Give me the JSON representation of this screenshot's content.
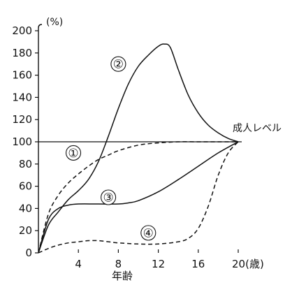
{
  "chart_data": {
    "type": "line",
    "y_unit": "(%)",
    "x_unit": "(歳)",
    "xlabel": "年齢",
    "xlim": [
      0,
      20
    ],
    "ylim": [
      0,
      200
    ],
    "x_ticks": [
      "4",
      "8",
      "12",
      "16",
      "20(歳)"
    ],
    "x_tick_values": [
      4,
      8,
      12,
      16,
      20
    ],
    "y_ticks": [
      "0",
      "20",
      "40",
      "60",
      "80",
      "100",
      "120",
      "140",
      "160",
      "180",
      "200"
    ],
    "y_tick_values": [
      0,
      20,
      40,
      60,
      80,
      100,
      120,
      140,
      160,
      180,
      200
    ],
    "reference_line": {
      "y": 100,
      "label": "成人レベル"
    },
    "series": [
      {
        "name": "①",
        "style": "dashed",
        "x": [
          0,
          1,
          2,
          3,
          4,
          5,
          6,
          7,
          8,
          10,
          12,
          14,
          16,
          18,
          20
        ],
        "y": [
          0,
          35,
          52,
          63,
          71,
          78,
          84,
          88,
          92,
          97,
          99,
          100,
          100,
          100,
          100
        ],
        "label_pos": [
          3.5,
          90
        ]
      },
      {
        "name": "②",
        "style": "solid",
        "x": [
          0,
          1,
          2,
          3,
          4,
          5,
          6,
          7,
          8,
          9,
          10,
          11,
          12,
          12.6,
          13.2,
          14,
          15,
          16,
          17,
          18,
          19,
          20
        ],
        "y": [
          0,
          25,
          37,
          48,
          56,
          66,
          82,
          105,
          130,
          152,
          168,
          178,
          186,
          188,
          185,
          165,
          142,
          126,
          115,
          108,
          103,
          100
        ],
        "label_pos": [
          8,
          170
        ]
      },
      {
        "name": "③",
        "style": "solid",
        "x": [
          0,
          1,
          2,
          3,
          4,
          6,
          8,
          9,
          10,
          12,
          14,
          16,
          18,
          20
        ],
        "y": [
          0,
          30,
          40,
          43,
          44,
          44,
          44,
          45,
          47,
          55,
          66,
          78,
          90,
          100
        ],
        "label_pos": [
          7,
          50
        ]
      },
      {
        "name": "④",
        "style": "dashed",
        "x": [
          0,
          1,
          2,
          3,
          4,
          5,
          6,
          7,
          8,
          10,
          12,
          14,
          15,
          16,
          17,
          18,
          19,
          20
        ],
        "y": [
          0,
          4,
          7,
          9,
          10,
          11,
          11,
          10,
          9,
          8,
          8,
          10,
          13,
          22,
          42,
          70,
          90,
          100
        ],
        "label_pos": [
          11,
          18
        ]
      }
    ]
  }
}
